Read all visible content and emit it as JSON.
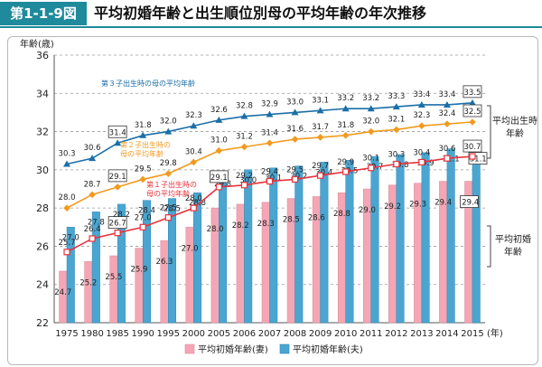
{
  "figure": {
    "label": "第1-1-9図",
    "title": "平均初婚年齢と出生順位別母の平均年齢の年次推移"
  },
  "colors": {
    "header": "#1f8a9c",
    "wife_bar": "#f4a6b4",
    "husband_bar": "#4aa6d1",
    "first_child": "#e8323c",
    "second_child": "#f29a1f",
    "third_child": "#1b6fa8"
  },
  "chart_data": {
    "type": "bar",
    "ylabel": "年齢(歳)",
    "xunit": "(年)",
    "ylim": [
      22,
      36
    ],
    "yticks": [
      22,
      24,
      26,
      28,
      30,
      32,
      34,
      36
    ],
    "categories": [
      "1975",
      "1980",
      "1985",
      "1990",
      "1995",
      "2000",
      "2005",
      "2006",
      "2007",
      "2008",
      "2009",
      "2010",
      "2011",
      "2012",
      "2013",
      "2014",
      "2015"
    ],
    "grid": "horizontal dashed",
    "bar_series": [
      {
        "name": "平均初婚年齢(妻)",
        "color": "#f4a6b4",
        "values": [
          24.7,
          25.2,
          25.5,
          25.9,
          26.3,
          27.0,
          28.0,
          28.2,
          28.3,
          28.5,
          28.6,
          28.8,
          29.0,
          29.2,
          29.3,
          29.4,
          29.4
        ]
      },
      {
        "name": "平均初婚年齢(夫)",
        "color": "#4aa6d1",
        "values": [
          27.0,
          27.8,
          28.2,
          28.4,
          28.5,
          28.8,
          29.8,
          30.0,
          30.1,
          30.2,
          30.4,
          30.5,
          30.7,
          30.8,
          30.9,
          31.1,
          31.1
        ]
      }
    ],
    "line_series": [
      {
        "name": "第1子出生時の母の平均年齢",
        "color": "#e8323c",
        "marker": "square-open",
        "values": [
          25.7,
          26.4,
          26.7,
          27.0,
          27.5,
          28.0,
          29.1,
          29.2,
          29.4,
          29.5,
          29.7,
          29.9,
          30.1,
          30.3,
          30.4,
          30.6,
          30.7
        ]
      },
      {
        "name": "第2子出生時の母の平均年齢",
        "color": "#f29a1f",
        "marker": "diamond",
        "values": [
          28.0,
          28.7,
          29.1,
          29.5,
          29.8,
          30.4,
          31.0,
          31.2,
          31.4,
          31.6,
          31.7,
          31.8,
          32.0,
          32.1,
          32.3,
          32.4,
          32.5
        ]
      },
      {
        "name": "第3子出生時の母の平均年齢",
        "color": "#1b6fa8",
        "marker": "triangle",
        "values": [
          30.3,
          30.6,
          31.4,
          31.8,
          32.0,
          32.3,
          32.6,
          32.8,
          32.9,
          33.0,
          33.1,
          33.2,
          33.2,
          33.3,
          33.4,
          33.4,
          33.5
        ]
      }
    ],
    "annotations": {
      "third_child_label": "第３子出生時の母の平均年齢",
      "second_child_label": [
        "第２子出生時の",
        "母の平均年齢"
      ],
      "first_child_label": [
        "第１子出生時の",
        "母の平均年齢"
      ],
      "right_upper": [
        "平均出生時",
        "年齢"
      ],
      "right_lower": [
        "平均初婚",
        "年齢"
      ]
    },
    "legend": {
      "position": "bottom",
      "items": [
        "平均初婚年齢(妻)",
        "平均初婚年齢(夫)"
      ]
    }
  }
}
